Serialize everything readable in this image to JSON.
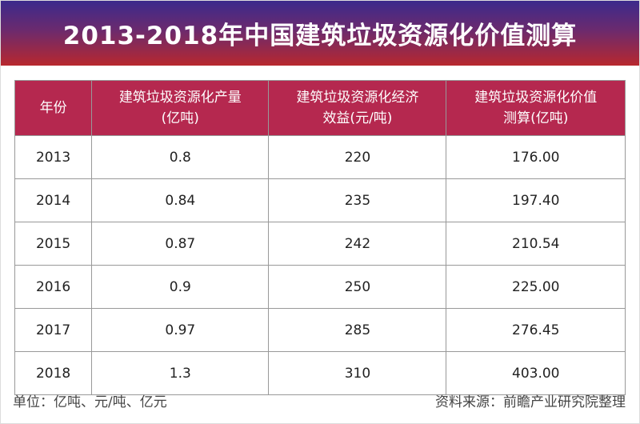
{
  "title": "2013-2018年中国建筑垃圾资源化价值测算",
  "colors": {
    "banner_top": "#3b2a8c",
    "banner_bottom": "#b8282e",
    "header_bg": "#b5284f"
  },
  "chart_data": {
    "type": "table",
    "columns": [
      "年份",
      "建筑垃圾资源化产量(亿吨)",
      "建筑垃圾资源化经济效益(元/吨)",
      "建筑垃圾资源化价值测算(亿吨)"
    ],
    "header_lines": [
      [
        "年份",
        ""
      ],
      [
        "建筑垃圾资源化产量",
        "(亿吨)"
      ],
      [
        "建筑垃圾资源化经济",
        "效益(元/吨)"
      ],
      [
        "建筑垃圾资源化价值",
        "测算(亿吨)"
      ]
    ],
    "rows": [
      [
        "2013",
        "0.8",
        "220",
        "176.00"
      ],
      [
        "2014",
        "0.84",
        "235",
        "197.40"
      ],
      [
        "2015",
        "0.87",
        "242",
        "210.54"
      ],
      [
        "2016",
        "0.9",
        "250",
        "225.00"
      ],
      [
        "2017",
        "0.97",
        "285",
        "276.45"
      ],
      [
        "2018",
        "1.3",
        "310",
        "403.00"
      ]
    ]
  },
  "footer": {
    "unit": "单位：亿吨、元/吨、亿元",
    "source": "资料来源：前瞻产业研究院整理"
  }
}
